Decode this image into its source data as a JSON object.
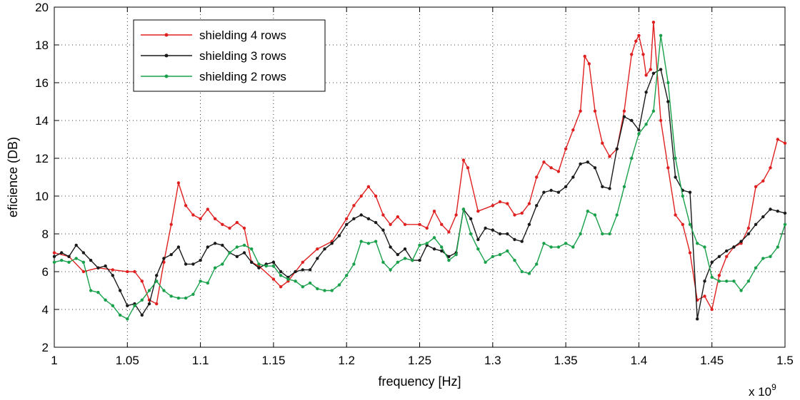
{
  "chart_data": {
    "type": "line",
    "title": "",
    "xlabel": "frequency [Hz]",
    "ylabel": "eficience (DB)",
    "x_multiplier_label": "x 10",
    "x_multiplier_exp": "9",
    "xlim": [
      1.0,
      1.5
    ],
    "ylim": [
      2,
      20
    ],
    "grid": true,
    "legend_position": "top-left",
    "x_ticks": [
      1.0,
      1.05,
      1.1,
      1.15,
      1.2,
      1.25,
      1.3,
      1.35,
      1.4,
      1.45,
      1.5
    ],
    "x_tick_labels": [
      "1",
      "1.05",
      "1.1",
      "1.15",
      "1.2",
      "1.25",
      "1.3",
      "1.35",
      "1.4",
      "1.45",
      "1.5"
    ],
    "y_ticks": [
      2,
      4,
      6,
      8,
      10,
      12,
      14,
      16,
      18,
      20
    ],
    "y_tick_labels": [
      "2",
      "4",
      "6",
      "8",
      "10",
      "12",
      "14",
      "16",
      "18",
      "20"
    ],
    "series": [
      {
        "name": "shielding  4 rows",
        "color": "#e02020",
        "x": [
          1.0,
          1.01,
          1.02,
          1.03,
          1.04,
          1.05,
          1.055,
          1.06,
          1.065,
          1.07,
          1.075,
          1.08,
          1.085,
          1.09,
          1.095,
          1.1,
          1.105,
          1.11,
          1.115,
          1.12,
          1.125,
          1.13,
          1.135,
          1.14,
          1.15,
          1.155,
          1.16,
          1.17,
          1.18,
          1.19,
          1.2,
          1.205,
          1.21,
          1.215,
          1.22,
          1.225,
          1.23,
          1.235,
          1.24,
          1.25,
          1.255,
          1.26,
          1.265,
          1.27,
          1.275,
          1.28,
          1.283,
          1.29,
          1.3,
          1.305,
          1.31,
          1.315,
          1.32,
          1.325,
          1.33,
          1.335,
          1.34,
          1.345,
          1.35,
          1.355,
          1.36,
          1.363,
          1.366,
          1.37,
          1.375,
          1.38,
          1.385,
          1.39,
          1.395,
          1.398,
          1.4,
          1.403,
          1.405,
          1.408,
          1.41,
          1.415,
          1.42,
          1.425,
          1.43,
          1.435,
          1.44,
          1.445,
          1.45,
          1.455,
          1.46,
          1.465,
          1.47,
          1.475,
          1.48,
          1.485,
          1.49,
          1.495,
          1.5
        ],
        "y": [
          7.0,
          6.8,
          6.0,
          6.2,
          6.1,
          6.0,
          6.0,
          5.5,
          4.5,
          4.3,
          6.5,
          8.5,
          10.7,
          9.5,
          9.0,
          8.8,
          9.3,
          8.8,
          8.5,
          8.3,
          8.6,
          8.3,
          6.5,
          6.3,
          5.6,
          5.2,
          5.5,
          6.5,
          7.2,
          7.6,
          8.8,
          9.5,
          10.0,
          10.5,
          10.0,
          9.0,
          8.5,
          8.9,
          8.5,
          8.5,
          8.3,
          9.2,
          8.5,
          8.1,
          9.0,
          11.9,
          11.5,
          9.2,
          9.5,
          9.7,
          9.6,
          9.0,
          9.1,
          9.6,
          11.0,
          11.8,
          11.5,
          11.3,
          12.5,
          13.5,
          14.5,
          17.4,
          17.0,
          14.5,
          12.8,
          12.1,
          12.5,
          14.5,
          17.5,
          18.2,
          18.5,
          17.5,
          16.4,
          16.7,
          19.2,
          14.0,
          11.5,
          9.0,
          8.5,
          7.0,
          4.5,
          4.7,
          4.0,
          5.8,
          6.8,
          7.3,
          7.5,
          8.3,
          10.5,
          10.8,
          11.5,
          13.0,
          12.8
        ]
      },
      {
        "name": "shielding 3 rows",
        "color": "#1a1a1a",
        "x": [
          1.0,
          1.005,
          1.01,
          1.015,
          1.02,
          1.025,
          1.03,
          1.035,
          1.04,
          1.045,
          1.05,
          1.055,
          1.06,
          1.065,
          1.07,
          1.075,
          1.08,
          1.085,
          1.09,
          1.095,
          1.1,
          1.105,
          1.11,
          1.115,
          1.12,
          1.125,
          1.13,
          1.135,
          1.14,
          1.145,
          1.15,
          1.155,
          1.16,
          1.165,
          1.17,
          1.175,
          1.18,
          1.185,
          1.19,
          1.195,
          1.2,
          1.205,
          1.21,
          1.215,
          1.22,
          1.225,
          1.23,
          1.235,
          1.24,
          1.245,
          1.25,
          1.255,
          1.26,
          1.265,
          1.27,
          1.275,
          1.28,
          1.285,
          1.29,
          1.295,
          1.3,
          1.305,
          1.31,
          1.315,
          1.32,
          1.325,
          1.33,
          1.335,
          1.34,
          1.345,
          1.35,
          1.355,
          1.36,
          1.365,
          1.37,
          1.375,
          1.38,
          1.385,
          1.39,
          1.395,
          1.4,
          1.405,
          1.41,
          1.415,
          1.42,
          1.425,
          1.43,
          1.435,
          1.44,
          1.445,
          1.45,
          1.455,
          1.46,
          1.465,
          1.47,
          1.475,
          1.48,
          1.485,
          1.49,
          1.495,
          1.5
        ],
        "y": [
          6.8,
          7.0,
          6.8,
          7.4,
          7.0,
          6.6,
          6.2,
          6.3,
          5.8,
          5.0,
          4.2,
          4.3,
          3.7,
          4.3,
          5.8,
          6.7,
          6.9,
          7.3,
          6.4,
          6.4,
          6.6,
          7.3,
          7.5,
          7.4,
          7.0,
          6.8,
          7.0,
          6.5,
          6.2,
          6.4,
          6.5,
          6.0,
          5.7,
          6.0,
          6.1,
          6.1,
          6.7,
          7.2,
          7.5,
          7.9,
          8.5,
          8.8,
          9.0,
          8.8,
          8.6,
          8.2,
          7.3,
          6.9,
          7.2,
          6.6,
          6.6,
          7.4,
          7.2,
          7.1,
          6.8,
          7.0,
          9.3,
          8.8,
          7.7,
          8.3,
          8.2,
          8.0,
          8.0,
          7.7,
          7.6,
          8.5,
          9.5,
          10.2,
          10.3,
          10.2,
          10.5,
          11.0,
          11.7,
          11.8,
          11.5,
          10.5,
          10.4,
          12.5,
          14.2,
          14.0,
          13.5,
          15.5,
          16.5,
          16.7,
          15.0,
          11.0,
          10.3,
          10.2,
          3.5,
          5.5,
          6.5,
          6.8,
          7.1,
          7.3,
          7.6,
          8.0,
          8.5,
          8.9,
          9.3,
          9.2,
          9.1
        ]
      },
      {
        "name": "shielding 2 rows",
        "color": "#19a04a",
        "x": [
          1.0,
          1.005,
          1.01,
          1.015,
          1.02,
          1.025,
          1.03,
          1.035,
          1.04,
          1.045,
          1.05,
          1.055,
          1.06,
          1.065,
          1.07,
          1.075,
          1.08,
          1.085,
          1.09,
          1.095,
          1.1,
          1.105,
          1.11,
          1.115,
          1.12,
          1.125,
          1.13,
          1.135,
          1.14,
          1.145,
          1.15,
          1.155,
          1.16,
          1.165,
          1.17,
          1.175,
          1.18,
          1.185,
          1.19,
          1.195,
          1.2,
          1.205,
          1.21,
          1.215,
          1.22,
          1.225,
          1.23,
          1.235,
          1.24,
          1.245,
          1.25,
          1.255,
          1.26,
          1.265,
          1.27,
          1.275,
          1.28,
          1.285,
          1.29,
          1.295,
          1.3,
          1.305,
          1.31,
          1.315,
          1.32,
          1.325,
          1.33,
          1.335,
          1.34,
          1.345,
          1.35,
          1.355,
          1.36,
          1.365,
          1.37,
          1.375,
          1.38,
          1.385,
          1.39,
          1.395,
          1.4,
          1.405,
          1.41,
          1.415,
          1.42,
          1.425,
          1.43,
          1.435,
          1.44,
          1.445,
          1.45,
          1.455,
          1.46,
          1.465,
          1.47,
          1.475,
          1.48,
          1.485,
          1.49,
          1.495,
          1.5
        ],
        "y": [
          6.5,
          6.6,
          6.5,
          6.7,
          6.5,
          5.0,
          4.9,
          4.5,
          4.2,
          3.7,
          3.5,
          4.2,
          4.5,
          5.0,
          5.5,
          5.0,
          4.7,
          4.6,
          4.6,
          4.8,
          5.5,
          5.4,
          6.2,
          6.4,
          7.0,
          7.3,
          7.4,
          7.2,
          6.4,
          6.3,
          6.3,
          5.8,
          5.6,
          5.5,
          5.2,
          5.4,
          5.1,
          5.0,
          5.0,
          5.3,
          5.8,
          6.4,
          7.6,
          7.5,
          7.6,
          6.5,
          6.1,
          6.5,
          6.7,
          6.6,
          7.4,
          7.5,
          7.8,
          7.3,
          6.6,
          6.9,
          9.3,
          8.0,
          7.2,
          6.5,
          6.8,
          6.9,
          7.1,
          6.6,
          6.0,
          5.9,
          6.4,
          7.5,
          7.3,
          7.3,
          7.5,
          7.3,
          8.0,
          9.2,
          9.0,
          8.0,
          8.0,
          9.0,
          10.5,
          12.0,
          13.3,
          13.8,
          14.5,
          18.5,
          16.0,
          12.0,
          10.0,
          8.5,
          7.5,
          7.3,
          5.7,
          5.5,
          5.5,
          5.5,
          5.0,
          5.5,
          6.2,
          6.7,
          6.8,
          7.3,
          8.5
        ]
      }
    ]
  }
}
